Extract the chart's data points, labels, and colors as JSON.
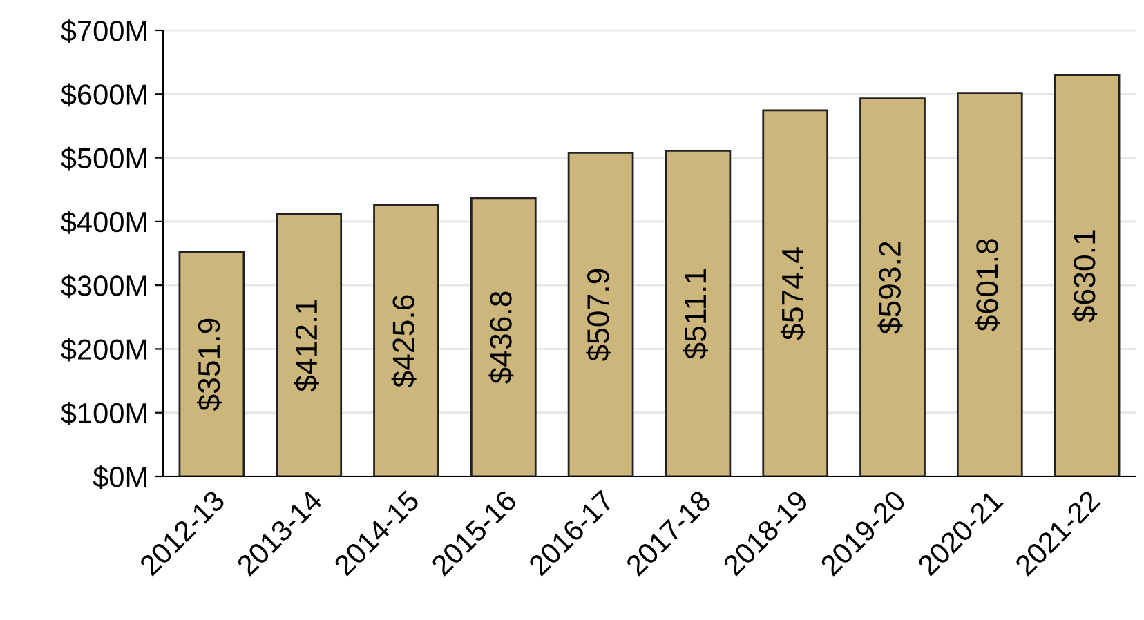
{
  "chart_data": {
    "type": "bar",
    "categories": [
      "2012-13",
      "2013-14",
      "2014-15",
      "2015-16",
      "2016-17",
      "2017-18",
      "2018-19",
      "2019-20",
      "2020-21",
      "2021-22"
    ],
    "values": [
      351.9,
      412.1,
      425.6,
      436.8,
      507.9,
      511.1,
      574.4,
      593.2,
      601.8,
      630.1
    ],
    "value_labels": [
      "$351.9",
      "$412.1",
      "$425.6",
      "$436.8",
      "$507.9",
      "$511.1",
      "$574.4",
      "$593.2",
      "$601.8",
      "$630.1"
    ],
    "color": "#cdb67c",
    "ylim": [
      0,
      700
    ],
    "yticks": [
      {
        "value": 0,
        "label": "$0M"
      },
      {
        "value": 100,
        "label": "$100M"
      },
      {
        "value": 200,
        "label": "$200M"
      },
      {
        "value": 300,
        "label": "$300M"
      },
      {
        "value": 400,
        "label": "$400M"
      },
      {
        "value": 500,
        "label": "$500M"
      },
      {
        "value": 600,
        "label": "$600M"
      },
      {
        "value": 700,
        "label": "$700M"
      }
    ],
    "grid": "y"
  }
}
